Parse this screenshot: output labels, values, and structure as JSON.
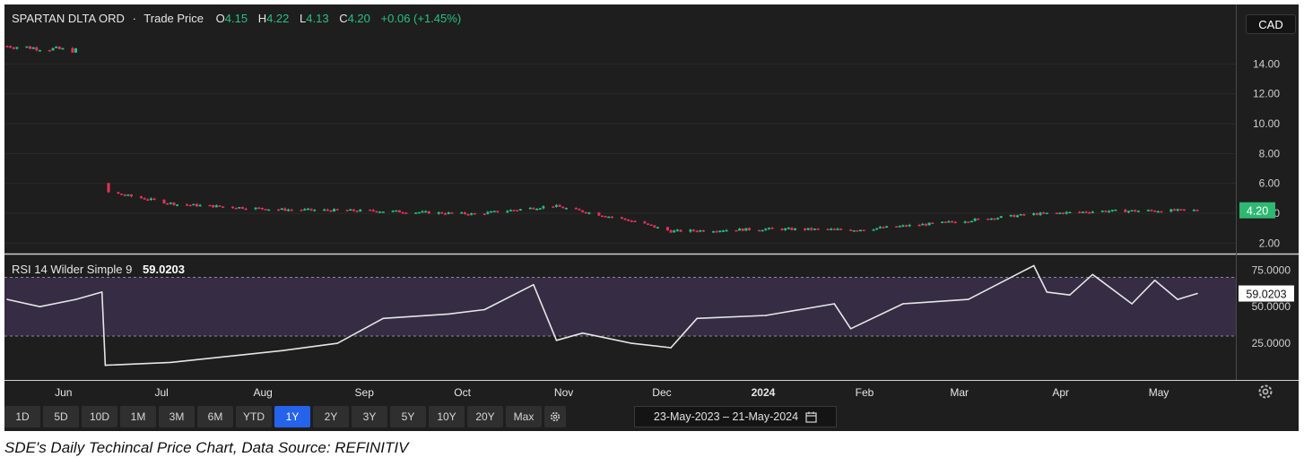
{
  "header": {
    "instrument": "SPARTAN DLTA ORD",
    "separator": "·",
    "price_type": "Trade Price",
    "o_label": "O",
    "o_value": "4.15",
    "h_label": "H",
    "h_value": "4.22",
    "l_label": "L",
    "l_value": "4.13",
    "c_label": "C",
    "c_value": "4.20",
    "change": "+0.06 (+1.45%)",
    "currency": "CAD"
  },
  "rsi_header": {
    "label": "RSI 14 Wilder Simple 9",
    "value": "59.0203"
  },
  "price_tag": "4.20",
  "rsi_tag": "59.0203",
  "range_buttons": [
    "1D",
    "5D",
    "10D",
    "1M",
    "3M",
    "6M",
    "YTD",
    "1Y",
    "2Y",
    "3Y",
    "5Y",
    "10Y",
    "20Y",
    "Max"
  ],
  "active_range": "1Y",
  "date_range": "23-May-2023  –  21-May-2024",
  "caption": "SDE's Daily Techincal Price Chart, Data Source: REFINITIV",
  "colors": {
    "up": "#26c281",
    "down": "#e6325a",
    "rsi_line": "#e6e6e6",
    "band": "#3b2f4a",
    "accent": "#2563eb",
    "bg": "#1e1e1e"
  },
  "icons": {
    "gear": "gear-icon",
    "calendar": "calendar-icon"
  },
  "chart_data": [
    {
      "type": "candlestick",
      "title": "SPARTAN DLTA ORD · Trade Price",
      "ylim": [
        1.3,
        16
      ],
      "yticks": [
        "2.00",
        "4.00",
        "6.00",
        "8.00",
        "10.00",
        "12.00",
        "14.00"
      ],
      "xticks": [
        "Jun",
        "Jul",
        "Aug",
        "Sep",
        "Oct",
        "Nov",
        "Dec",
        "2024",
        "Feb",
        "Mar",
        "Apr",
        "May"
      ],
      "x": [
        "2023-05-23",
        "2023-06-13",
        "2023-06-23",
        "2023-07-14",
        "2023-08-15",
        "2023-09-15",
        "2023-10-13",
        "2023-11-06",
        "2023-11-30",
        "2023-12-12",
        "2024-01-10",
        "2024-02-07",
        "2024-03-01",
        "2024-04-01",
        "2024-04-22",
        "2024-05-21"
      ],
      "close": [
        15.2,
        14.9,
        5.4,
        4.6,
        4.25,
        4.15,
        3.95,
        4.5,
        3.5,
        2.8,
        2.95,
        2.9,
        3.3,
        3.95,
        4.15,
        4.2
      ]
    },
    {
      "type": "line",
      "title": "RSI 14 Wilder Simple 9",
      "ylim": [
        0,
        85
      ],
      "yticks": [
        "25.0000",
        "50.0000",
        "75.0000"
      ],
      "bands": [
        30,
        70
      ],
      "x": [
        "2023-05-23",
        "2023-06-02",
        "2023-06-13",
        "2023-06-21",
        "2023-06-22",
        "2023-07-12",
        "2023-08-15",
        "2023-09-01",
        "2023-09-15",
        "2023-10-05",
        "2023-10-16",
        "2023-10-31",
        "2023-11-07",
        "2023-11-15",
        "2023-11-30",
        "2023-12-12",
        "2023-12-20",
        "2024-01-10",
        "2024-01-31",
        "2024-02-05",
        "2024-02-21",
        "2024-03-12",
        "2024-04-01",
        "2024-04-05",
        "2024-04-12",
        "2024-04-19",
        "2024-05-01",
        "2024-05-08",
        "2024-05-15",
        "2024-05-21"
      ],
      "values": [
        55,
        50,
        55,
        60,
        10,
        12,
        20,
        25,
        42,
        45,
        48,
        65,
        27,
        32,
        25,
        22,
        42,
        44,
        52,
        35,
        52,
        55,
        78,
        60,
        58,
        72,
        52,
        68,
        55,
        59
      ]
    }
  ]
}
